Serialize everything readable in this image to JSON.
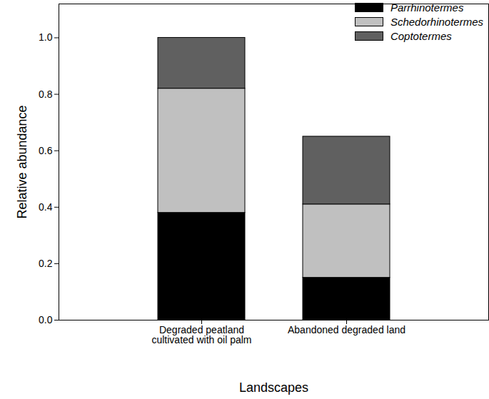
{
  "chart_data": {
    "type": "bar",
    "stacked": true,
    "legend": "top-right",
    "x_label": "Landscapes",
    "y_label": "Relative abundance",
    "categories": [
      "Degraded peatland\ncultivated with oil palm",
      "Abandoned degraded land"
    ],
    "series": [
      {
        "name": "Parrhinotermes",
        "color": "#000000",
        "values": [
          0.38,
          0.15
        ]
      },
      {
        "name": "Schedorhinotermes",
        "color": "#c0c0c0",
        "values": [
          0.44,
          0.26
        ]
      },
      {
        "name": "Coptotermes",
        "color": "#606060",
        "values": [
          0.18,
          0.24
        ]
      }
    ],
    "ylim": [
      0,
      1.12
    ],
    "yticks": [
      {
        "value": 0,
        "label": "0.0"
      },
      0.2,
      0.4,
      0.6,
      0.8,
      {
        "value": 1,
        "label": "1.0"
      }
    ]
  }
}
